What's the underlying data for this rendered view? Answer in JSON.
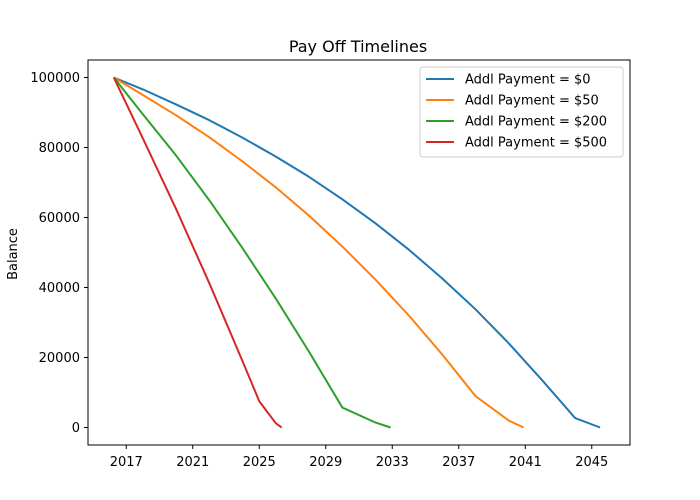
{
  "chart_data": {
    "type": "line",
    "title": "Pay Off Timelines",
    "xlabel": "",
    "ylabel": "Balance",
    "xlim": [
      2014.7,
      2047.3
    ],
    "ylim": [
      -5000,
      105000
    ],
    "xticks": [
      2017,
      2021,
      2025,
      2029,
      2033,
      2037,
      2041,
      2045
    ],
    "yticks": [
      0,
      20000,
      40000,
      60000,
      80000,
      100000
    ],
    "grid": false,
    "legend_position": "upper right",
    "series": [
      {
        "name": "Addl Payment = $0",
        "color": "#1f77b4",
        "x": [
          2016.25,
          2018,
          2020,
          2022,
          2024,
          2026,
          2028,
          2030,
          2032,
          2034,
          2036,
          2038,
          2040,
          2042,
          2044,
          2045.5
        ],
        "y": [
          100000,
          96600,
          92300,
          87800,
          82800,
          77400,
          71600,
          65200,
          58300,
          50800,
          42600,
          33800,
          24100,
          13600,
          2700,
          0
        ]
      },
      {
        "name": "Addl Payment = $50",
        "color": "#ff7f0e",
        "x": [
          2016.25,
          2018,
          2020,
          2022,
          2024,
          2026,
          2028,
          2030,
          2032,
          2034,
          2036,
          2038,
          2040,
          2040.9
        ],
        "y": [
          100000,
          95000,
          89200,
          82900,
          76000,
          68600,
          60500,
          51700,
          42200,
          32000,
          20900,
          9000,
          2000,
          0
        ]
      },
      {
        "name": "Addl Payment = $200",
        "color": "#2ca02c",
        "x": [
          2016.25,
          2018,
          2020,
          2022,
          2024,
          2026,
          2028,
          2030,
          2032,
          2032.9
        ],
        "y": [
          100000,
          89500,
          77700,
          64900,
          51200,
          36800,
          21600,
          5700,
          1400,
          0
        ]
      },
      {
        "name": "Addl Payment = $500",
        "color": "#d62728",
        "x": [
          2016.25,
          2018,
          2020,
          2022,
          2024,
          2025,
          2026,
          2026.35
        ],
        "y": [
          100000,
          82600,
          62400,
          41200,
          18900,
          7500,
          1200,
          0
        ]
      }
    ]
  }
}
